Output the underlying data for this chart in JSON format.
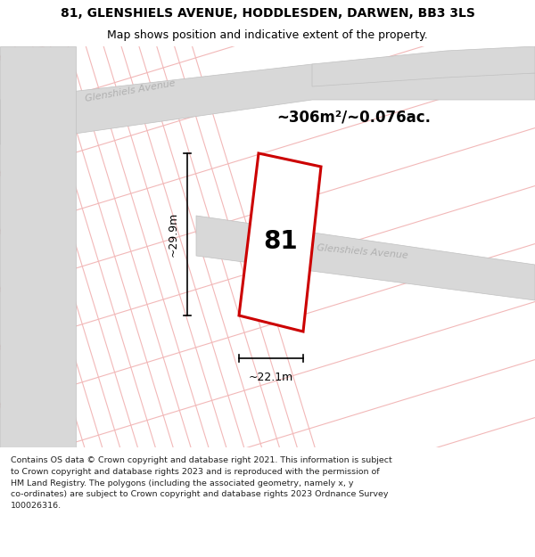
{
  "title": "81, GLENSHIELS AVENUE, HODDLESDEN, DARWEN, BB3 3LS",
  "subtitle": "Map shows position and indicative extent of the property.",
  "area_label": "~306m²/~0.076ac.",
  "plot_number": "81",
  "width_label": "~22.1m",
  "height_label": "~29.9m",
  "footer_lines": [
    "Contains OS data © Crown copyright and database right 2021. This information is subject",
    "to Crown copyright and database rights 2023 and is reproduced with the permission of",
    "HM Land Registry. The polygons (including the associated geometry, namely x, y",
    "co-ordinates) are subject to Crown copyright and database rights 2023 Ordnance Survey",
    "100026316."
  ],
  "bg_color": "#f2f2f2",
  "road_color": "#d8d8d8",
  "road_edge_color": "#c0c0c0",
  "grid_color": "#f2b8b8",
  "plot_fill": "#ffffff",
  "plot_edge": "#cc0000",
  "title_fontsize": 10,
  "subtitle_fontsize": 9,
  "area_fontsize": 12,
  "plot_num_fontsize": 20,
  "dim_fontsize": 9,
  "footer_fontsize": 6.8,
  "road_label_fontsize": 8,
  "road_label_color": "#b0b0b0"
}
